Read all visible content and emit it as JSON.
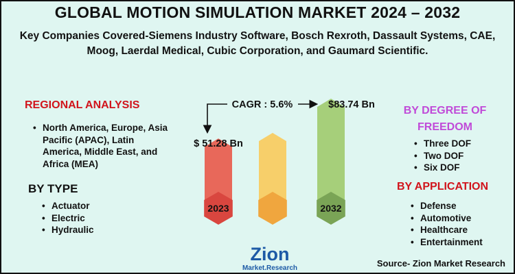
{
  "header": {
    "title": "GLOBAL MOTION SIMULATION MARKET 2024 – 2032",
    "subtitle": "Key Companies Covered-Siemens Industry Software, Bosch Rexroth, Dassault Systems, CAE, Moog, Laerdal Medical, Cubic Corporation, and Gaumard Scientific."
  },
  "regional": {
    "heading": "REGIONAL ANALYSIS",
    "items": [
      "North America, Europe, Asia Pacific (APAC), Latin America, Middle East, and Africa (MEA)"
    ]
  },
  "by_type": {
    "heading": "BY TYPE",
    "items": [
      "Actuator",
      "Electric",
      "Hydraulic"
    ]
  },
  "by_dof": {
    "heading_line1": "BY DEGREE OF",
    "heading_line2": "FREEDOM",
    "items": [
      "Three DOF",
      "Two DOF",
      "Six DOF"
    ]
  },
  "by_application": {
    "heading": "BY APPLICATION",
    "items": [
      "Defense",
      "Automotive",
      "Healthcare",
      "Entertainment"
    ]
  },
  "chart_data": {
    "type": "bar",
    "title": "Global Motion Simulation Market",
    "categories": [
      "2023",
      "",
      "2032"
    ],
    "values": [
      51.28,
      null,
      83.74
    ],
    "labels": [
      "$ 51.28  Bn",
      "",
      "$83.74 Bn"
    ],
    "cagr_label": "CAGR : 5.6%",
    "unit": "USD Billion"
  },
  "logo": {
    "line1": "Zion",
    "line2": "Market.Research"
  },
  "source": "Source- Zion Market Research",
  "colors": {
    "bar1": "#e8685a",
    "bar1_hex": "#d9463f",
    "bar2": "#f7cf6a",
    "bar2_hex": "#f0a63e",
    "bar3": "#a6cf7a",
    "bar3_hex": "#7aa456",
    "background": "#dff6f1",
    "heading_red": "#d1141c",
    "heading_purple": "#c04ad8"
  }
}
